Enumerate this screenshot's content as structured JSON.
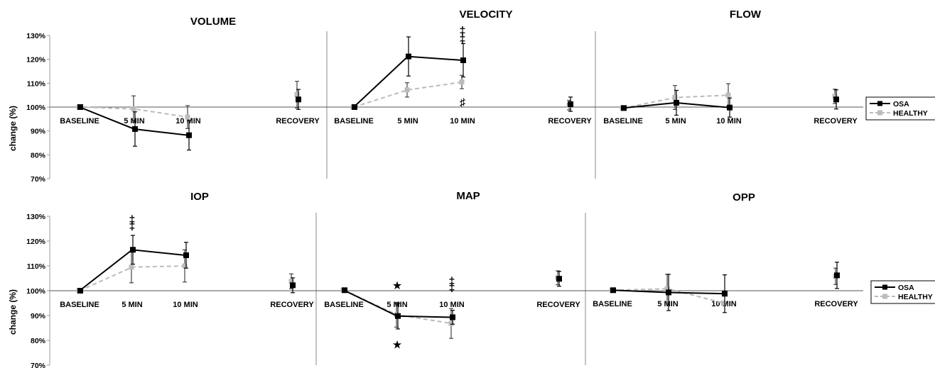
{
  "chart_data": [
    {
      "type": "line",
      "title": "VOLUME",
      "ylabel": "change (%)",
      "categories": [
        "BASELINE",
        "5 MIN",
        "10 MIN",
        "RECOVERY"
      ],
      "y_ticks": [
        "130%",
        "120%",
        "110%",
        "100%",
        "90%",
        "80%",
        "70%"
      ],
      "ylim": [
        70,
        130
      ],
      "series": [
        {
          "name": "OSA",
          "color": "#000000",
          "values": [
            100,
            90.8,
            88.2,
            103.2
          ],
          "err": [
            0,
            7.2,
            6.2,
            4.2
          ]
        },
        {
          "name": "HEALTHY",
          "color": "#bbbbbb",
          "values": [
            100,
            99.2,
            95.8,
            105.2
          ],
          "err": [
            0,
            5.5,
            4.8,
            5.6
          ]
        }
      ],
      "markers": []
    },
    {
      "type": "line",
      "title": "VELOCITY",
      "categories": [
        "BASELINE",
        "5 MIN",
        "10 MIN",
        "RECOVERY"
      ],
      "ylim": [
        70,
        130
      ],
      "series": [
        {
          "name": "OSA",
          "color": "#000000",
          "values": [
            100,
            121.2,
            119.6,
            101.2
          ],
          "err": [
            0,
            8.2,
            7.0,
            3.0
          ]
        },
        {
          "name": "HEALTHY",
          "color": "#bbbbbb",
          "values": [
            100,
            107.2,
            110.5,
            100.8
          ],
          "err": [
            0,
            3.0,
            2.8,
            2.0
          ]
        }
      ],
      "markers": [
        {
          "symbol": "‡",
          "category": "10 MIN",
          "y": 132.3
        },
        {
          "symbol": "‡",
          "category": "10 MIN",
          "y": 128.8
        },
        {
          "symbol": "♯",
          "category": "10 MIN",
          "y": 102.2
        }
      ]
    },
    {
      "type": "line",
      "title": "FLOW",
      "categories": [
        "BASELINE",
        "5 MIN",
        "10 MIN",
        "RECOVERY"
      ],
      "ylim": [
        70,
        130
      ],
      "series": [
        {
          "name": "OSA",
          "color": "#000000",
          "values": [
            99.6,
            101.8,
            99.8,
            103.2
          ],
          "err": [
            0,
            5.2,
            4.0,
            4.0
          ]
        },
        {
          "name": "HEALTHY",
          "color": "#bbbbbb",
          "values": [
            99.6,
            104.0,
            105.0,
            104.5
          ],
          "err": [
            0,
            5.0,
            4.8,
            3.0
          ]
        }
      ],
      "markers": []
    },
    {
      "type": "line",
      "title": "IOP",
      "ylabel": "change (%)",
      "categories": [
        "BASELINE",
        "5 MIN",
        "10 MIN",
        "RECOVERY"
      ],
      "y_ticks": [
        "130%",
        "120%",
        "110%",
        "100%",
        "90%",
        "80%",
        "70%"
      ],
      "ylim": [
        70,
        130
      ],
      "series": [
        {
          "name": "OSA",
          "color": "#000000",
          "values": [
            100,
            116.5,
            114.3,
            102.2
          ],
          "err": [
            0,
            5.8,
            5.2,
            3.0
          ]
        },
        {
          "name": "HEALTHY",
          "color": "#bbbbbb",
          "values": [
            100,
            109.5,
            110.0,
            103.8
          ],
          "err": [
            0,
            6.3,
            6.5,
            3.0
          ]
        }
      ],
      "markers": [
        {
          "symbol": "‡",
          "category": "5 MIN",
          "y": 128.8
        },
        {
          "symbol": "‡",
          "category": "5 MIN",
          "y": 126.3
        }
      ]
    },
    {
      "type": "line",
      "title": "MAP",
      "categories": [
        "BASELINE",
        "5 MIN",
        "10 MIN",
        "RECOVERY"
      ],
      "ylim": [
        70,
        130
      ],
      "series": [
        {
          "name": "OSA",
          "color": "#000000",
          "values": [
            100.2,
            89.8,
            89.3,
            104.8
          ],
          "err": [
            0,
            5.2,
            2.8,
            3.0
          ]
        },
        {
          "name": "HEALTHY",
          "color": "#bbbbbb",
          "values": [
            100.2,
            90.3,
            86.8,
            105.2
          ],
          "err": [
            0,
            5.0,
            6.0,
            2.8
          ]
        }
      ],
      "markers": [
        {
          "symbol": "★",
          "category": "5 MIN",
          "y": 102.3
        },
        {
          "symbol": "‡",
          "category": "10 MIN",
          "y": 104.0
        },
        {
          "symbol": "‡",
          "category": "10 MIN",
          "y": 101.5
        },
        {
          "symbol": "★",
          "category": "5 MIN",
          "y": 78.5
        }
      ]
    },
    {
      "type": "line",
      "title": "OPP",
      "categories": [
        "BASELINE",
        "5 MIN",
        "10 MIN",
        "RECOVERY"
      ],
      "ylim": [
        70,
        130
      ],
      "series": [
        {
          "name": "OSA",
          "color": "#000000",
          "values": [
            100.2,
            99.3,
            98.8,
            106.2
          ],
          "err": [
            0,
            7.3,
            7.6,
            5.3
          ]
        },
        {
          "name": "HEALTHY",
          "color": "#bbbbbb",
          "values": [
            100.2,
            100.8,
            95.0,
            105.8
          ],
          "err": [
            0,
            5.8,
            0,
            3.3
          ]
        }
      ],
      "markers": []
    }
  ],
  "legend": {
    "entries": [
      "OSA",
      "HEALTHY"
    ],
    "placement": "right"
  }
}
